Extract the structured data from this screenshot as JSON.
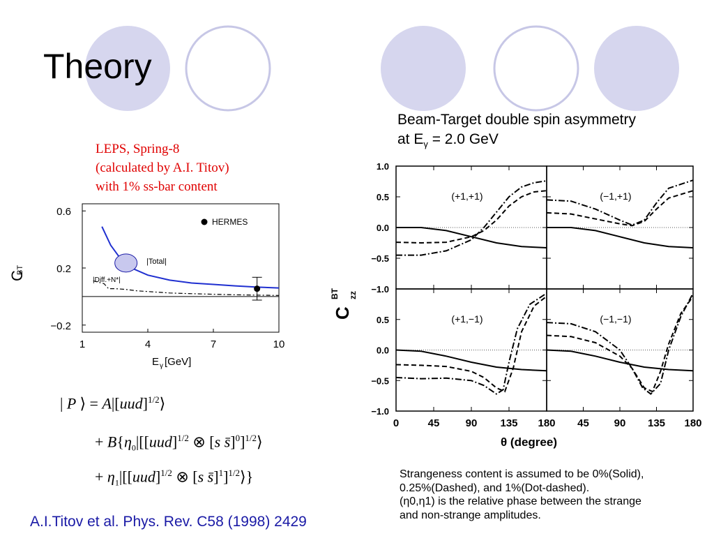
{
  "slide": {
    "title": "Theory",
    "deco_colors": {
      "filled": "#d6d6ee",
      "outline": "#c7c7e6"
    },
    "leps_note": [
      "LEPS, Spring-8",
      "(calculated by A.I. Titov)",
      "with 1%  ss-bar content"
    ],
    "right_title_line1": "Beam-Target double spin asymmetry",
    "right_title_line2": "at E",
    "right_title_line2_sub": "γ",
    "right_title_line2_rest": " = 2.0 GeV",
    "bottom_note": [
      "Strangeness content is assumed to be 0%(Solid),",
      "0.25%(Dashed), and 1%(Dot-dashed).",
      "(η0,η1) is the relative phase between the strange",
      "and non-strange amplitudes."
    ],
    "citation": "A.I.Titov et al.  Phys. Rev. C58 (1998) 2429",
    "equation": [
      "|P⟩ = A|[uud]^{1/2}⟩",
      "+ B{η0|[[uud]^{1/2} ⊗ [ss̄]^0]^{1/2}⟩",
      "+ η1|[[uud]^{1/2} ⊗ [ss̄]^1]^{1/2}⟩}"
    ]
  },
  "chart_data": [
    {
      "type": "line",
      "xlabel": "E",
      "xlabel_sub": "γ",
      "xlabel_unit": " [GeV]",
      "ylabel": "C",
      "ylabel_sub": "BT",
      "xlim": [
        1,
        10
      ],
      "ylim": [
        -0.25,
        0.65
      ],
      "xticks": [
        "1",
        "4",
        "7",
        "10"
      ],
      "yticks": [
        "0.6",
        "0.2",
        "−0.2"
      ],
      "xtick_values": [
        1,
        4,
        7,
        10
      ],
      "ytick_values": [
        0.6,
        0.2,
        -0.2
      ],
      "legend": "HERMES",
      "labels": {
        "total": "|Total|",
        "diff": "|Diff.+N*|"
      },
      "colors": {
        "total": "#1f2fd0",
        "ellipse_fill": "#c8c8ee"
      },
      "series": [
        {
          "name": "|Total|",
          "style": "solid",
          "x": [
            1.9,
            2.3,
            2.8,
            3.4,
            4.0,
            5.0,
            6.0,
            7.0,
            8.0,
            9.0,
            10.0
          ],
          "y": [
            0.49,
            0.36,
            0.255,
            0.19,
            0.15,
            0.115,
            0.095,
            0.085,
            0.075,
            0.066,
            0.06
          ]
        },
        {
          "name": "|Diff.+N*|",
          "style": "dash-dot",
          "x": [
            1.5,
            2.0,
            2.2,
            2.5,
            3.0,
            3.5,
            4.0,
            5.0,
            6.0,
            8.0,
            10.0
          ],
          "y": [
            0.11,
            0.09,
            0.055,
            0.055,
            0.05,
            0.04,
            0.035,
            0.025,
            0.02,
            0.012,
            0.008
          ]
        }
      ],
      "points": [
        {
          "name": "HERMES",
          "x": 9.0,
          "y": 0.055,
          "err": 0.08
        }
      ],
      "baseline": 0
    },
    {
      "type": "line",
      "ylabel": "C",
      "ylabel_sup": "BT",
      "ylabel_sub": "zz",
      "xlabel": "θ  (degree)",
      "xticks": [
        "0",
        "45",
        "90",
        "135",
        "180",
        "45",
        "90",
        "135",
        "180"
      ],
      "yticks": [
        "1.0",
        "0.5",
        "0.0",
        "−0.5",
        "−1.0",
        "0.5",
        "0.0",
        "−0.5",
        "−1.0"
      ],
      "xlim": [
        0,
        180
      ],
      "ylim": [
        -1.0,
        1.0
      ],
      "panels": [
        {
          "label": "(+1,+1)",
          "solid": {
            "x": [
              0,
              30,
              60,
              90,
              120,
              150,
              180
            ],
            "y": [
              0.0,
              0.0,
              -0.05,
              -0.15,
              -0.25,
              -0.31,
              -0.33
            ]
          },
          "dashed": {
            "x": [
              0,
              30,
              60,
              90,
              105,
              120,
              135,
              150,
              165,
              180
            ],
            "y": [
              -0.24,
              -0.25,
              -0.24,
              -0.15,
              -0.05,
              0.12,
              0.35,
              0.5,
              0.58,
              0.6
            ]
          },
          "dashdot": {
            "x": [
              0,
              30,
              60,
              90,
              105,
              120,
              135,
              150,
              165,
              180
            ],
            "y": [
              -0.45,
              -0.45,
              -0.38,
              -0.2,
              0.0,
              0.25,
              0.5,
              0.66,
              0.73,
              0.76
            ]
          }
        },
        {
          "label": "(−1,+1)",
          "solid": {
            "x": [
              0,
              30,
              60,
              90,
              120,
              150,
              180
            ],
            "y": [
              0.0,
              0.0,
              -0.05,
              -0.15,
              -0.25,
              -0.31,
              -0.33
            ]
          },
          "dashed": {
            "x": [
              0,
              30,
              60,
              90,
              105,
              120,
              135,
              150,
              180
            ],
            "y": [
              0.24,
              0.22,
              0.14,
              0.06,
              0.03,
              0.1,
              0.3,
              0.48,
              0.6
            ]
          },
          "dashdot": {
            "x": [
              0,
              30,
              60,
              90,
              105,
              120,
              135,
              150,
              180
            ],
            "y": [
              0.45,
              0.43,
              0.3,
              0.12,
              0.04,
              0.12,
              0.4,
              0.64,
              0.77
            ]
          }
        },
        {
          "label": "(+1,−1)",
          "solid": {
            "x": [
              0,
              30,
              60,
              90,
              120,
              150,
              180
            ],
            "y": [
              0.0,
              -0.02,
              -0.1,
              -0.2,
              -0.28,
              -0.32,
              -0.34
            ]
          },
          "dashed": {
            "x": [
              0,
              30,
              60,
              90,
              105,
              120,
              130,
              140,
              150,
              165,
              180
            ],
            "y": [
              -0.24,
              -0.25,
              -0.27,
              -0.35,
              -0.45,
              -0.62,
              -0.68,
              -0.3,
              0.3,
              0.72,
              0.88
            ]
          },
          "dashdot": {
            "x": [
              0,
              30,
              60,
              90,
              105,
              120,
              128,
              135,
              145,
              160,
              180
            ],
            "y": [
              -0.45,
              -0.47,
              -0.46,
              -0.5,
              -0.58,
              -0.72,
              -0.65,
              -0.2,
              0.35,
              0.75,
              0.93
            ]
          }
        },
        {
          "label": "(−1,−1)",
          "solid": {
            "x": [
              0,
              30,
              60,
              90,
              120,
              150,
              180
            ],
            "y": [
              0.0,
              -0.02,
              -0.1,
              -0.2,
              -0.28,
              -0.32,
              -0.34
            ]
          },
          "dashed": {
            "x": [
              0,
              30,
              60,
              90,
              105,
              120,
              130,
              140,
              150,
              165,
              180
            ],
            "y": [
              0.24,
              0.22,
              0.12,
              -0.1,
              -0.3,
              -0.62,
              -0.68,
              -0.35,
              0.1,
              0.6,
              0.88
            ]
          },
          "dashdot": {
            "x": [
              0,
              30,
              60,
              90,
              105,
              118,
              128,
              140,
              150,
              165,
              180
            ],
            "y": [
              0.45,
              0.43,
              0.3,
              0.0,
              -0.3,
              -0.62,
              -0.72,
              -0.55,
              0.0,
              0.55,
              0.93
            ]
          }
        }
      ]
    }
  ]
}
